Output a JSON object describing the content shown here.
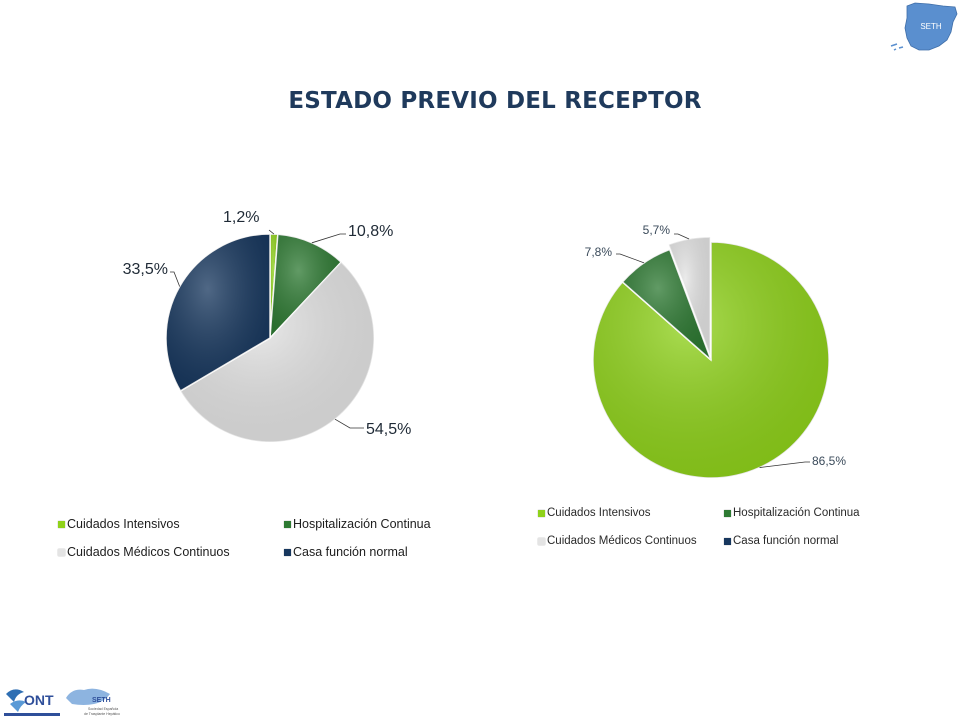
{
  "title": "ESTADO PREVIO DEL RECEPTOR",
  "logos": {
    "map_text": "SETH",
    "ont_text": "ONT",
    "seth_text": "SETH",
    "seth_caption_1": "Sociedad Española",
    "seth_caption_2": "de Trasplante Hepático"
  },
  "colors": {
    "cuidados_intensivos": "#8fd21a",
    "hospitalizacion_continua": "#2e7a33",
    "cuidados_medicos_continuos": "#e4e4e4",
    "casa_funcion_normal": "#17375e",
    "title": "#1f3a5c"
  },
  "chart_data": [
    {
      "type": "pie",
      "categories": [
        "Cuidados Intensivos",
        "Hospitalización Continua",
        "Cuidados Médicos Continuos",
        "Casa función normal"
      ],
      "values": [
        1.2,
        10.8,
        54.5,
        33.5
      ],
      "data_labels": [
        "1,2%",
        "10,8%",
        "54,5%",
        "33,5%"
      ],
      "legend_position": "bottom"
    },
    {
      "type": "pie",
      "categories": [
        "Cuidados Intensivos",
        "Hospitalización Continua",
        "Cuidados Médicos Continuos",
        "Casa función normal"
      ],
      "values": [
        86.5,
        7.8,
        5.7,
        0
      ],
      "data_labels": [
        "86,5%",
        "7,8%",
        "5,7%",
        ""
      ],
      "legend_position": "bottom"
    }
  ]
}
